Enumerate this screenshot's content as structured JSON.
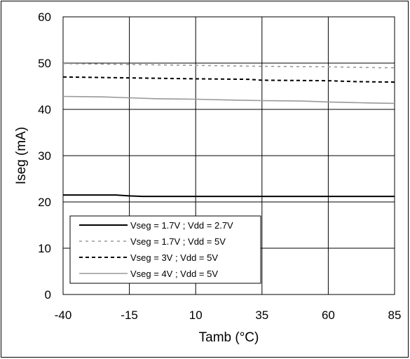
{
  "chart_data": {
    "type": "line",
    "xlabel": "Tamb (°C)",
    "ylabel": "Iseg (mA)",
    "xlim": [
      -40,
      85
    ],
    "ylim": [
      0,
      60
    ],
    "x_ticks": [
      -40,
      -15,
      10,
      35,
      60,
      85
    ],
    "y_ticks": [
      0,
      10,
      20,
      30,
      40,
      50,
      60
    ],
    "grid": true,
    "legend_position": "bottom-left",
    "series": [
      {
        "name": "Vseg = 1.7V ; Vdd = 2.7V",
        "style": "solid",
        "color": "#000000",
        "x": [
          -40,
          -20,
          -15,
          -10,
          10,
          35,
          60,
          85
        ],
        "y": [
          21.5,
          21.5,
          21.3,
          21.2,
          21.2,
          21.2,
          21.2,
          21.2
        ]
      },
      {
        "name": "Vseg = 1.7V ; Vdd = 5V",
        "style": "dashed",
        "color": "#999999",
        "x": [
          -40,
          -15,
          10,
          35,
          60,
          80,
          85
        ],
        "y": [
          49.9,
          49.7,
          49.5,
          49.3,
          49.2,
          49.0,
          49.0
        ]
      },
      {
        "name": "Vseg = 3V ; Vdd = 5V",
        "style": "dashed",
        "color": "#000000",
        "x": [
          -40,
          -15,
          10,
          30,
          35,
          60,
          70,
          85
        ],
        "y": [
          47.0,
          46.8,
          46.6,
          46.5,
          46.3,
          46.2,
          46.0,
          45.9
        ]
      },
      {
        "name": "Vseg = 4V ; Vdd = 5V",
        "style": "solid",
        "color": "#999999",
        "x": [
          -40,
          -25,
          -15,
          -5,
          10,
          25,
          35,
          50,
          60,
          75,
          85
        ],
        "y": [
          42.8,
          42.7,
          42.5,
          42.3,
          42.2,
          42.0,
          41.9,
          41.8,
          41.6,
          41.4,
          41.3
        ]
      }
    ]
  }
}
